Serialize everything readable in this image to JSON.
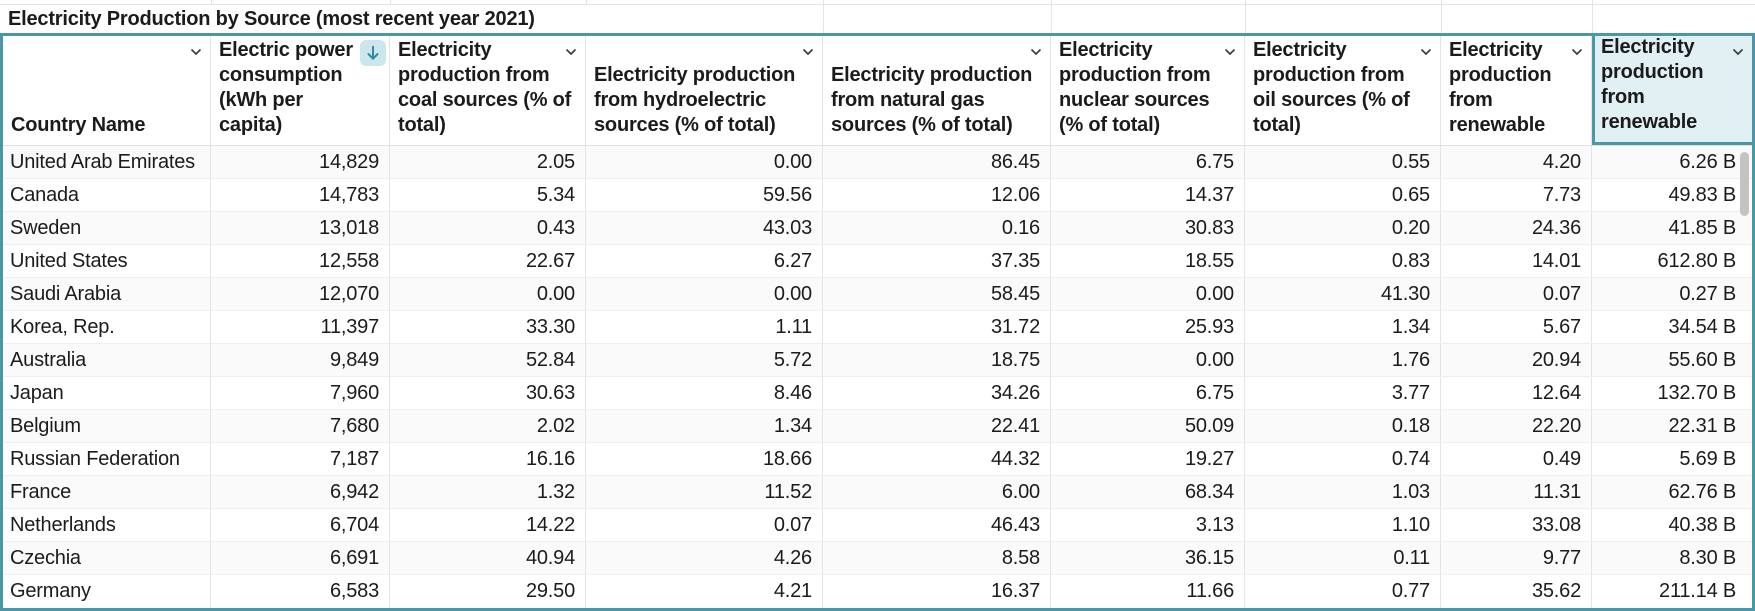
{
  "sheet": {
    "title": "Electricity Production by Source (most recent year 2021)"
  },
  "table": {
    "columns": [
      {
        "label": "Country Name",
        "control": "dropdown"
      },
      {
        "label": "Electric power consumption (kWh per capita)",
        "control": "sort-button",
        "sorted": "descending"
      },
      {
        "label": "Electricity production from coal sources (% of total)",
        "control": "dropdown"
      },
      {
        "label": "Electricity production from hydroelectric sources (% of total)",
        "control": "dropdown"
      },
      {
        "label": "Electricity production from natural gas sources (% of total)",
        "control": "dropdown"
      },
      {
        "label": "Electricity production from nuclear sources (% of total)",
        "control": "dropdown"
      },
      {
        "label": "Electricity production from oil sources (% of total)",
        "control": "dropdown"
      },
      {
        "label": "Electricity production from renewable",
        "control": "dropdown"
      },
      {
        "label": "Electricity production from renewable",
        "control": "dropdown",
        "selected": true
      }
    ],
    "rows": [
      {
        "cells": [
          "United Arab Emirates",
          "14,829",
          "2.05",
          "0.00",
          "86.45",
          "6.75",
          "0.55",
          "4.20",
          "6.26 B"
        ]
      },
      {
        "cells": [
          "Canada",
          "14,783",
          "5.34",
          "59.56",
          "12.06",
          "14.37",
          "0.65",
          "7.73",
          "49.83 B"
        ]
      },
      {
        "cells": [
          "Sweden",
          "13,018",
          "0.43",
          "43.03",
          "0.16",
          "30.83",
          "0.20",
          "24.36",
          "41.85 B"
        ]
      },
      {
        "cells": [
          "United States",
          "12,558",
          "22.67",
          "6.27",
          "37.35",
          "18.55",
          "0.83",
          "14.01",
          "612.80 B"
        ]
      },
      {
        "cells": [
          "Saudi Arabia",
          "12,070",
          "0.00",
          "0.00",
          "58.45",
          "0.00",
          "41.30",
          "0.07",
          "0.27 B"
        ]
      },
      {
        "cells": [
          "Korea, Rep.",
          "11,397",
          "33.30",
          "1.11",
          "31.72",
          "25.93",
          "1.34",
          "5.67",
          "34.54 B"
        ]
      },
      {
        "cells": [
          "Australia",
          "9,849",
          "52.84",
          "5.72",
          "18.75",
          "0.00",
          "1.76",
          "20.94",
          "55.60 B"
        ]
      },
      {
        "cells": [
          "Japan",
          "7,960",
          "30.63",
          "8.46",
          "34.26",
          "6.75",
          "3.77",
          "12.64",
          "132.70 B"
        ]
      },
      {
        "cells": [
          "Belgium",
          "7,680",
          "2.02",
          "1.34",
          "22.41",
          "50.09",
          "0.18",
          "22.20",
          "22.31 B"
        ]
      },
      {
        "cells": [
          "Russian Federation",
          "7,187",
          "16.16",
          "18.66",
          "44.32",
          "19.27",
          "0.74",
          "0.49",
          "5.69 B"
        ]
      },
      {
        "cells": [
          "France",
          "6,942",
          "1.32",
          "11.52",
          "6.00",
          "68.34",
          "1.03",
          "11.31",
          "62.76 B"
        ]
      },
      {
        "cells": [
          "Netherlands",
          "6,704",
          "14.22",
          "0.07",
          "46.43",
          "3.13",
          "1.10",
          "33.08",
          "40.38 B"
        ]
      },
      {
        "cells": [
          "Czechia",
          "6,691",
          "40.94",
          "4.26",
          "8.58",
          "36.15",
          "0.11",
          "9.77",
          "8.30 B"
        ]
      },
      {
        "cells": [
          "Germany",
          "6,583",
          "29.50",
          "4.21",
          "16.37",
          "11.66",
          "0.77",
          "35.62",
          "211.14 B"
        ]
      }
    ]
  },
  "colors": {
    "accent_teal": "#4a97a8",
    "sort_button_bg": "#cbe7ed",
    "sort_arrow": "#2f8ba1",
    "selected_header_bg": "#e1f0f3",
    "gridline": "#e4e4e4",
    "scrollbar_thumb": "#c3c3c3"
  }
}
